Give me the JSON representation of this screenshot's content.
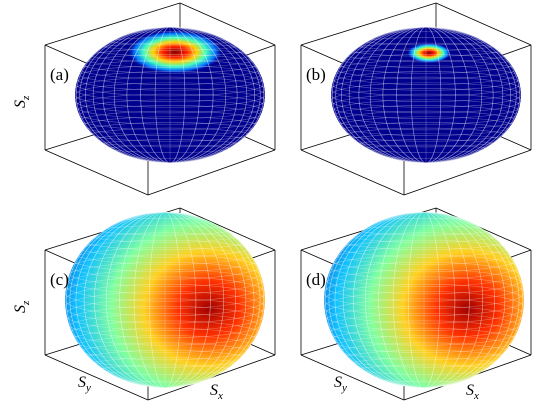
{
  "panels": [
    {
      "label": "(a)",
      "sz": {
        "symbol": "S",
        "subscript": "z"
      }
    },
    {
      "label": "(b)"
    },
    {
      "label": "(c)",
      "sz": {
        "symbol": "S",
        "subscript": "z"
      },
      "sy": {
        "symbol": "S",
        "subscript": "y"
      },
      "sx": {
        "symbol": "S",
        "subscript": "x"
      }
    },
    {
      "label": "(d)",
      "sy": {
        "symbol": "S",
        "subscript": "y"
      },
      "sx": {
        "symbol": "S",
        "subscript": "x"
      }
    }
  ]
}
